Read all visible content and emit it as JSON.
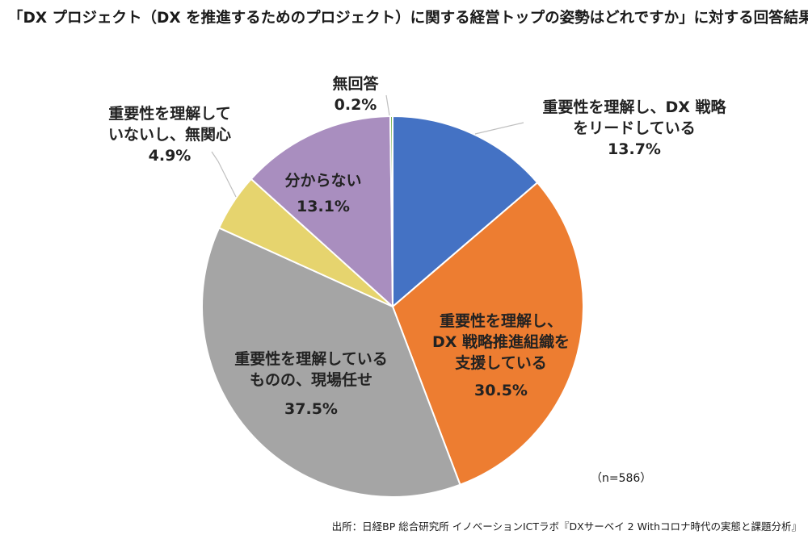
{
  "chart_data": {
    "type": "pie",
    "title": "「DX プロジェクト（DX を推進するためのプロジェクト）に関する経営トップの姿勢はどれですか」に対する回答結果",
    "slices": [
      {
        "label_lines": [
          "重要性を理解し、DX 戦略",
          "をリードしている"
        ],
        "value_text": "13.7%",
        "value": 13.7,
        "color": "#4472C4"
      },
      {
        "label_lines": [
          "重要性を理解し、",
          "DX 戦略推進組織を",
          "支援している"
        ],
        "value_text": "30.5%",
        "value": 30.5,
        "color": "#ED7D31"
      },
      {
        "label_lines": [
          "重要性を理解している",
          "ものの、現場任せ"
        ],
        "value_text": "37.5%",
        "value": 37.5,
        "color": "#A5A5A5"
      },
      {
        "label_lines": [
          "重要性を理解して",
          "いないし、無関心"
        ],
        "value_text": "4.9%",
        "value": 4.9,
        "color": "#E6D46E"
      },
      {
        "label_lines": [
          "分からない"
        ],
        "value_text": "13.1%",
        "value": 13.1,
        "color": "#A98EBF"
      },
      {
        "label_lines": [
          "無回答"
        ],
        "value_text": "0.2%",
        "value": 0.2,
        "color": "#70AD47"
      }
    ],
    "sample_note": "（n=586）",
    "source": "出所：日経BP 総合研究所 イノベーションICTラボ『DXサーベイ 2 Withコロナ時代の実態と課題分析』"
  }
}
